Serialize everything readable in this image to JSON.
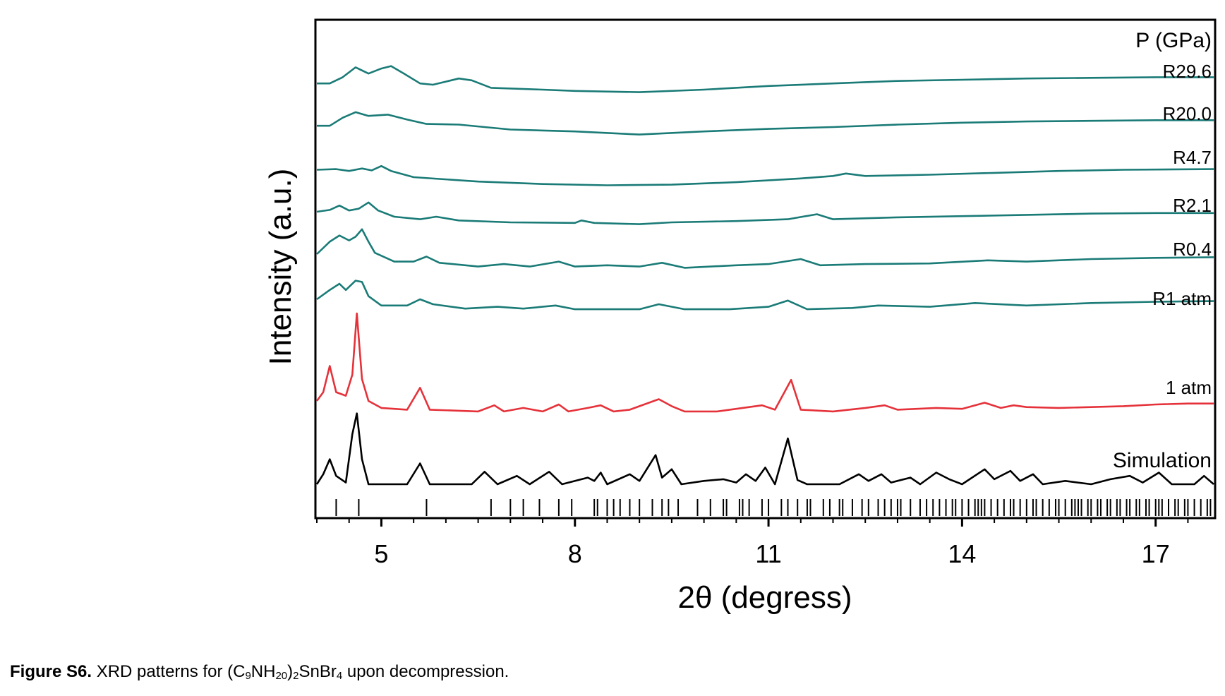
{
  "caption": {
    "label": "Figure S6.",
    "text_before": " XRD patterns for (C",
    "sub1": "9",
    "text_mid1": "NH",
    "sub2": "20",
    "text_mid2": ")",
    "sub3": "2",
    "text_mid3": "SnBr",
    "sub4": "4",
    "text_after": " upon decompression."
  },
  "chart_data": {
    "type": "line",
    "xlabel": "2θ (degress)",
    "ylabel": "Intensity (a.u.)",
    "legend_title": "P (GPa)",
    "xlim": [
      4.0,
      17.9
    ],
    "xticks": [
      5,
      8,
      11,
      14,
      17
    ],
    "y_ticks_shown": false,
    "series": [
      {
        "name": "R29.6",
        "color": "#1a7b77",
        "points": [
          [
            4.0,
            0.02
          ],
          [
            4.2,
            0.02
          ],
          [
            4.4,
            0.12
          ],
          [
            4.6,
            0.28
          ],
          [
            4.8,
            0.18
          ],
          [
            5.0,
            0.26
          ],
          [
            5.15,
            0.3
          ],
          [
            5.35,
            0.18
          ],
          [
            5.6,
            0.02
          ],
          [
            5.8,
            0.0
          ],
          [
            6.0,
            0.05
          ],
          [
            6.2,
            0.1
          ],
          [
            6.4,
            0.07
          ],
          [
            6.7,
            -0.05
          ],
          [
            7.5,
            -0.08
          ],
          [
            8.0,
            -0.1
          ],
          [
            9.0,
            -0.12
          ],
          [
            10.0,
            -0.08
          ],
          [
            11.0,
            -0.02
          ],
          [
            12.0,
            0.02
          ],
          [
            13.0,
            0.06
          ],
          [
            14.0,
            0.08
          ],
          [
            15.0,
            0.1
          ],
          [
            16.0,
            0.11
          ],
          [
            17.0,
            0.12
          ],
          [
            17.9,
            0.12
          ]
        ]
      },
      {
        "name": "R20.0",
        "color": "#1a7b77",
        "points": [
          [
            4.0,
            0.02
          ],
          [
            4.2,
            0.02
          ],
          [
            4.4,
            0.15
          ],
          [
            4.6,
            0.24
          ],
          [
            4.8,
            0.18
          ],
          [
            5.1,
            0.2
          ],
          [
            5.4,
            0.12
          ],
          [
            5.7,
            0.05
          ],
          [
            6.2,
            0.04
          ],
          [
            7.0,
            -0.04
          ],
          [
            8.0,
            -0.07
          ],
          [
            9.0,
            -0.12
          ],
          [
            10.0,
            -0.07
          ],
          [
            11.0,
            -0.03
          ],
          [
            12.0,
            0.0
          ],
          [
            13.0,
            0.04
          ],
          [
            14.0,
            0.07
          ],
          [
            15.0,
            0.09
          ],
          [
            16.0,
            0.1
          ],
          [
            17.0,
            0.11
          ],
          [
            17.9,
            0.11
          ]
        ]
      },
      {
        "name": "R4.7",
        "color": "#1a7b77",
        "points": [
          [
            4.0,
            0.04
          ],
          [
            4.3,
            0.05
          ],
          [
            4.5,
            0.02
          ],
          [
            4.7,
            0.06
          ],
          [
            4.85,
            0.03
          ],
          [
            5.0,
            0.1
          ],
          [
            5.15,
            0.02
          ],
          [
            5.5,
            -0.08
          ],
          [
            6.5,
            -0.15
          ],
          [
            7.5,
            -0.19
          ],
          [
            8.5,
            -0.21
          ],
          [
            9.5,
            -0.2
          ],
          [
            10.5,
            -0.16
          ],
          [
            11.5,
            -0.1
          ],
          [
            12.0,
            -0.06
          ],
          [
            12.2,
            -0.02
          ],
          [
            12.5,
            -0.06
          ],
          [
            13.5,
            -0.04
          ],
          [
            14.5,
            -0.01
          ],
          [
            15.5,
            0.02
          ],
          [
            16.5,
            0.04
          ],
          [
            17.9,
            0.05
          ]
        ]
      },
      {
        "name": "R2.1",
        "color": "#1a7b77",
        "points": [
          [
            4.0,
            0.0
          ],
          [
            4.2,
            0.03
          ],
          [
            4.35,
            0.1
          ],
          [
            4.5,
            0.02
          ],
          [
            4.65,
            0.05
          ],
          [
            4.8,
            0.15
          ],
          [
            4.95,
            0.02
          ],
          [
            5.2,
            -0.08
          ],
          [
            5.6,
            -0.12
          ],
          [
            5.85,
            -0.08
          ],
          [
            6.2,
            -0.14
          ],
          [
            7.0,
            -0.17
          ],
          [
            8.0,
            -0.18
          ],
          [
            8.1,
            -0.14
          ],
          [
            8.3,
            -0.18
          ],
          [
            9.0,
            -0.2
          ],
          [
            9.5,
            -0.17
          ],
          [
            10.5,
            -0.15
          ],
          [
            11.3,
            -0.12
          ],
          [
            11.75,
            -0.04
          ],
          [
            12.0,
            -0.12
          ],
          [
            13.0,
            -0.09
          ],
          [
            14.0,
            -0.07
          ],
          [
            15.0,
            -0.05
          ],
          [
            16.0,
            -0.03
          ],
          [
            17.0,
            -0.02
          ],
          [
            17.9,
            -0.02
          ]
        ]
      },
      {
        "name": "R0.4",
        "color": "#1a7b77",
        "points": [
          [
            4.0,
            0.0
          ],
          [
            4.2,
            0.2
          ],
          [
            4.35,
            0.3
          ],
          [
            4.5,
            0.22
          ],
          [
            4.6,
            0.28
          ],
          [
            4.7,
            0.4
          ],
          [
            4.8,
            0.2
          ],
          [
            4.9,
            0.02
          ],
          [
            5.2,
            -0.12
          ],
          [
            5.5,
            -0.12
          ],
          [
            5.7,
            -0.04
          ],
          [
            5.9,
            -0.14
          ],
          [
            6.5,
            -0.2
          ],
          [
            6.9,
            -0.16
          ],
          [
            7.3,
            -0.2
          ],
          [
            7.75,
            -0.12
          ],
          [
            8.0,
            -0.2
          ],
          [
            8.5,
            -0.18
          ],
          [
            9.0,
            -0.2
          ],
          [
            9.35,
            -0.14
          ],
          [
            9.7,
            -0.22
          ],
          [
            10.5,
            -0.18
          ],
          [
            11.0,
            -0.16
          ],
          [
            11.5,
            -0.08
          ],
          [
            11.8,
            -0.18
          ],
          [
            12.5,
            -0.16
          ],
          [
            13.5,
            -0.15
          ],
          [
            14.4,
            -0.1
          ],
          [
            15.0,
            -0.12
          ],
          [
            16.0,
            -0.08
          ],
          [
            17.0,
            -0.06
          ],
          [
            17.9,
            -0.05
          ]
        ]
      },
      {
        "name": "R1 atm",
        "color": "#1a7b77",
        "points": [
          [
            4.0,
            0.0
          ],
          [
            4.2,
            0.15
          ],
          [
            4.35,
            0.25
          ],
          [
            4.45,
            0.15
          ],
          [
            4.6,
            0.3
          ],
          [
            4.7,
            0.28
          ],
          [
            4.8,
            0.05
          ],
          [
            5.0,
            -0.1
          ],
          [
            5.4,
            -0.1
          ],
          [
            5.6,
            0.0
          ],
          [
            5.8,
            -0.08
          ],
          [
            6.3,
            -0.15
          ],
          [
            6.8,
            -0.12
          ],
          [
            7.2,
            -0.15
          ],
          [
            7.7,
            -0.1
          ],
          [
            8.0,
            -0.16
          ],
          [
            8.5,
            -0.16
          ],
          [
            9.0,
            -0.16
          ],
          [
            9.3,
            -0.08
          ],
          [
            9.7,
            -0.16
          ],
          [
            10.4,
            -0.16
          ],
          [
            11.0,
            -0.12
          ],
          [
            11.3,
            -0.02
          ],
          [
            11.6,
            -0.16
          ],
          [
            12.3,
            -0.14
          ],
          [
            12.7,
            -0.1
          ],
          [
            13.5,
            -0.12
          ],
          [
            14.2,
            -0.06
          ],
          [
            15.0,
            -0.1
          ],
          [
            16.0,
            -0.06
          ],
          [
            17.0,
            -0.04
          ],
          [
            17.9,
            -0.03
          ]
        ]
      },
      {
        "name": "1 atm",
        "color": "#e5323a",
        "points": [
          [
            4.0,
            0.0
          ],
          [
            4.1,
            0.1
          ],
          [
            4.2,
            0.4
          ],
          [
            4.3,
            0.1
          ],
          [
            4.45,
            0.06
          ],
          [
            4.55,
            0.3
          ],
          [
            4.62,
            1.0
          ],
          [
            4.7,
            0.25
          ],
          [
            4.8,
            0.0
          ],
          [
            5.0,
            -0.08
          ],
          [
            5.4,
            -0.1
          ],
          [
            5.6,
            0.15
          ],
          [
            5.75,
            -0.1
          ],
          [
            6.5,
            -0.12
          ],
          [
            6.75,
            -0.05
          ],
          [
            6.9,
            -0.12
          ],
          [
            7.2,
            -0.08
          ],
          [
            7.5,
            -0.12
          ],
          [
            7.75,
            -0.04
          ],
          [
            7.9,
            -0.12
          ],
          [
            8.2,
            -0.08
          ],
          [
            8.4,
            -0.05
          ],
          [
            8.6,
            -0.12
          ],
          [
            8.85,
            -0.1
          ],
          [
            9.3,
            0.02
          ],
          [
            9.5,
            -0.06
          ],
          [
            9.7,
            -0.12
          ],
          [
            10.2,
            -0.12
          ],
          [
            10.6,
            -0.08
          ],
          [
            10.9,
            -0.05
          ],
          [
            11.1,
            -0.1
          ],
          [
            11.35,
            0.24
          ],
          [
            11.5,
            -0.1
          ],
          [
            12.0,
            -0.12
          ],
          [
            12.5,
            -0.08
          ],
          [
            12.8,
            -0.05
          ],
          [
            13.0,
            -0.1
          ],
          [
            13.6,
            -0.08
          ],
          [
            14.0,
            -0.09
          ],
          [
            14.35,
            -0.02
          ],
          [
            14.6,
            -0.08
          ],
          [
            14.8,
            -0.05
          ],
          [
            15.0,
            -0.07
          ],
          [
            15.5,
            -0.08
          ],
          [
            16.0,
            -0.07
          ],
          [
            16.5,
            -0.06
          ],
          [
            17.0,
            -0.04
          ],
          [
            17.5,
            -0.03
          ],
          [
            17.9,
            -0.03
          ]
        ]
      },
      {
        "name": "Simulation",
        "color": "#000000",
        "points": [
          [
            4.0,
            0.0
          ],
          [
            4.1,
            0.12
          ],
          [
            4.2,
            0.3
          ],
          [
            4.3,
            0.1
          ],
          [
            4.45,
            0.02
          ],
          [
            4.55,
            0.6
          ],
          [
            4.62,
            0.85
          ],
          [
            4.7,
            0.3
          ],
          [
            4.8,
            0.0
          ],
          [
            5.0,
            0.0
          ],
          [
            5.4,
            0.0
          ],
          [
            5.6,
            0.25
          ],
          [
            5.75,
            0.0
          ],
          [
            6.4,
            0.0
          ],
          [
            6.6,
            0.15
          ],
          [
            6.8,
            0.0
          ],
          [
            7.1,
            0.1
          ],
          [
            7.3,
            0.0
          ],
          [
            7.6,
            0.15
          ],
          [
            7.8,
            0.0
          ],
          [
            8.2,
            0.08
          ],
          [
            8.3,
            0.04
          ],
          [
            8.4,
            0.14
          ],
          [
            8.5,
            0.0
          ],
          [
            8.85,
            0.12
          ],
          [
            9.0,
            0.04
          ],
          [
            9.25,
            0.35
          ],
          [
            9.35,
            0.08
          ],
          [
            9.5,
            0.18
          ],
          [
            9.65,
            0.0
          ],
          [
            10.0,
            0.04
          ],
          [
            10.3,
            0.06
          ],
          [
            10.5,
            0.02
          ],
          [
            10.65,
            0.12
          ],
          [
            10.8,
            0.04
          ],
          [
            10.95,
            0.2
          ],
          [
            11.1,
            0.0
          ],
          [
            11.3,
            0.55
          ],
          [
            11.45,
            0.05
          ],
          [
            11.6,
            0.0
          ],
          [
            12.1,
            0.0
          ],
          [
            12.4,
            0.12
          ],
          [
            12.55,
            0.04
          ],
          [
            12.75,
            0.12
          ],
          [
            12.9,
            0.02
          ],
          [
            13.2,
            0.08
          ],
          [
            13.35,
            0.0
          ],
          [
            13.6,
            0.14
          ],
          [
            13.8,
            0.06
          ],
          [
            14.0,
            0.0
          ],
          [
            14.35,
            0.18
          ],
          [
            14.5,
            0.06
          ],
          [
            14.75,
            0.16
          ],
          [
            14.9,
            0.04
          ],
          [
            15.1,
            0.12
          ],
          [
            15.25,
            0.0
          ],
          [
            15.6,
            0.04
          ],
          [
            16.0,
            0.0
          ],
          [
            16.3,
            0.06
          ],
          [
            16.6,
            0.1
          ],
          [
            16.8,
            0.02
          ],
          [
            17.05,
            0.14
          ],
          [
            17.25,
            0.0
          ],
          [
            17.6,
            0.0
          ],
          [
            17.75,
            0.1
          ],
          [
            17.9,
            0.0
          ]
        ]
      }
    ],
    "reflection_ticks": [
      4.3,
      4.65,
      5.7,
      6.7,
      7.0,
      7.2,
      7.45,
      7.75,
      7.95,
      8.3,
      8.35,
      8.5,
      8.6,
      8.7,
      8.85,
      9.0,
      9.2,
      9.35,
      9.45,
      9.6,
      9.9,
      10.1,
      10.3,
      10.35,
      10.55,
      10.6,
      10.7,
      10.9,
      11.0,
      11.2,
      11.3,
      11.45,
      11.6,
      11.65,
      11.85,
      11.95,
      12.1,
      12.15,
      12.3,
      12.45,
      12.55,
      12.7,
      12.8,
      12.9,
      13.0,
      13.05,
      13.2,
      13.35,
      13.45,
      13.55,
      13.65,
      13.75,
      13.85,
      13.9,
      14.0,
      14.1,
      14.2,
      14.25,
      14.3,
      14.35,
      14.45,
      14.55,
      14.65,
      14.75,
      14.8,
      14.9,
      15.0,
      15.1,
      15.15,
      15.25,
      15.35,
      15.45,
      15.5,
      15.6,
      15.7,
      15.75,
      15.8,
      15.85,
      15.95,
      16.0,
      16.1,
      16.15,
      16.25,
      16.3,
      16.4,
      16.45,
      16.55,
      16.6,
      16.7,
      16.75,
      16.85,
      16.9,
      17.0,
      17.05,
      17.1,
      17.2,
      17.3,
      17.35,
      17.45,
      17.5,
      17.6,
      17.7,
      17.8,
      17.85
    ]
  }
}
